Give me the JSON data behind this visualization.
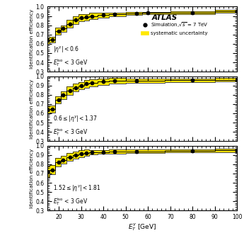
{
  "panels": [
    {
      "label_eta": "|\\eta^{\\gamma}|<0.6",
      "label_et": "$E_T^{\\rm iso}$ < 3 GeV",
      "x": [
        15,
        17,
        20,
        22,
        25,
        27.5,
        30,
        32.5,
        35,
        40,
        45,
        55,
        60,
        80,
        100
      ],
      "y": [
        0.635,
        0.645,
        0.735,
        0.765,
        0.815,
        0.855,
        0.878,
        0.885,
        0.9,
        0.908,
        0.918,
        0.928,
        0.932,
        0.932,
        0.948
      ],
      "ylo": [
        0.6,
        0.615,
        0.695,
        0.73,
        0.775,
        0.81,
        0.84,
        0.848,
        0.862,
        0.882,
        0.898,
        0.912,
        0.92,
        0.916,
        0.932
      ],
      "yhi": [
        0.67,
        0.675,
        0.775,
        0.8,
        0.855,
        0.9,
        0.916,
        0.922,
        0.938,
        0.934,
        0.938,
        0.944,
        0.944,
        0.948,
        0.964
      ],
      "show_legend": true
    },
    {
      "label_eta": "0.6\\leq|\\eta^{\\gamma}|<1.37",
      "label_et": "$E_T^{\\rm iso}$ < 3 GeV",
      "x": [
        15,
        17,
        20,
        22,
        25,
        27.5,
        30,
        32.5,
        35,
        40,
        45,
        55,
        80,
        100
      ],
      "y": [
        0.635,
        0.645,
        0.745,
        0.795,
        0.845,
        0.878,
        0.898,
        0.918,
        0.928,
        0.94,
        0.948,
        0.952,
        0.955,
        0.96
      ],
      "ylo": [
        0.595,
        0.61,
        0.705,
        0.755,
        0.8,
        0.835,
        0.86,
        0.878,
        0.888,
        0.905,
        0.918,
        0.928,
        0.935,
        0.942
      ],
      "yhi": [
        0.675,
        0.68,
        0.785,
        0.835,
        0.89,
        0.921,
        0.936,
        0.958,
        0.968,
        0.975,
        0.978,
        0.976,
        0.975,
        0.978
      ],
      "show_legend": false
    },
    {
      "label_eta": "1.52\\leq|\\eta^{\\gamma}|<1.81",
      "label_et": "$E_T^{\\rm iso}$ < 3 GeV",
      "x": [
        15,
        17,
        20,
        22,
        25,
        27.5,
        30,
        32.5,
        35,
        40,
        45,
        55,
        80,
        100
      ],
      "y": [
        0.715,
        0.74,
        0.82,
        0.848,
        0.878,
        0.898,
        0.912,
        0.922,
        0.93,
        0.932,
        0.936,
        0.938,
        0.942,
        0.948
      ],
      "ylo": [
        0.655,
        0.692,
        0.775,
        0.808,
        0.838,
        0.858,
        0.876,
        0.888,
        0.906,
        0.91,
        0.916,
        0.92,
        0.926,
        0.932
      ],
      "yhi": [
        0.775,
        0.788,
        0.865,
        0.888,
        0.918,
        0.938,
        0.948,
        0.956,
        0.954,
        0.954,
        0.956,
        0.956,
        0.958,
        0.964
      ],
      "show_legend": false
    }
  ],
  "xlim": [
    15,
    100
  ],
  "ylim": [
    0.3,
    1.0
  ],
  "yticks": [
    0.3,
    0.4,
    0.5,
    0.6,
    0.7,
    0.8,
    0.9,
    1.0
  ],
  "xlabel": "$E_T^{\\gamma}$ [GeV]",
  "ylabel": "Identification efficiency",
  "band_color": "#FFE800",
  "line_color": "black",
  "marker_color": "black",
  "atlas_label": "ATLAS",
  "bg_color": "white",
  "xticks": [
    20,
    30,
    40,
    50,
    60,
    70,
    80,
    90,
    100
  ]
}
